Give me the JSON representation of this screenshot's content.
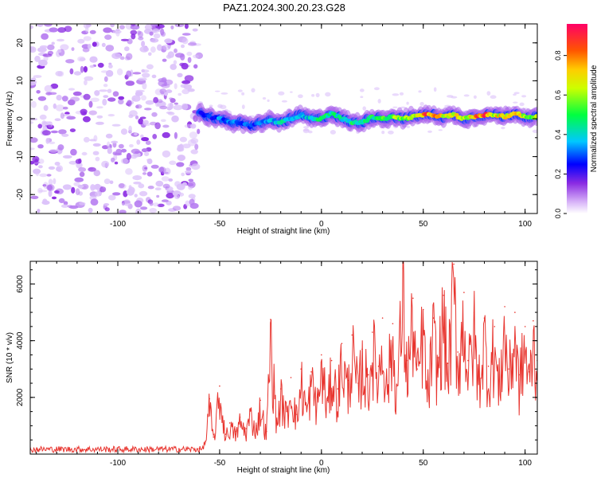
{
  "figure_title": "PAZ1.2024.300.20.23.G28",
  "colors": {
    "snr_line": "#e8352f",
    "noise": "#8a2be2",
    "frame": "#000000"
  },
  "chart_data": [
    {
      "type": "heatmap",
      "title": "",
      "xlabel": "Height of straight line (km)",
      "ylabel": "Frequency (Hz)",
      "xlim": [
        -143,
        106
      ],
      "ylim": [
        -25,
        25
      ],
      "xticks": [
        -100,
        -50,
        0,
        50,
        100
      ],
      "xtick_labels": [
        "-100",
        "-50",
        "0",
        "50",
        "100"
      ],
      "yticks": [
        -20,
        -10,
        0,
        10,
        20
      ],
      "ytick_labels": [
        "-20",
        "-10",
        "0",
        "10",
        "20"
      ],
      "noise_region_x": [
        -143,
        -60
      ],
      "signal_start_x": -60,
      "signal_track": {
        "x": [
          -60,
          -55,
          -50,
          -45,
          -40,
          -35,
          -30,
          -25,
          -20,
          -15,
          -10,
          -5,
          0,
          5,
          10,
          15,
          20,
          25,
          30,
          35,
          40,
          45,
          50,
          55,
          60,
          65,
          70,
          75,
          80,
          85,
          90,
          95,
          100,
          106
        ],
        "frequency_hz": [
          1.5,
          0.5,
          0,
          -1,
          -1,
          -2,
          -1,
          -0.5,
          -1,
          0,
          1,
          0,
          0,
          1.5,
          0,
          -1,
          -1,
          0.5,
          0,
          0.5,
          0,
          0.5,
          1,
          1,
          0.5,
          1,
          0,
          0.5,
          1,
          1,
          0.5,
          1.5,
          0.5,
          0.5
        ],
        "amplitude": [
          0.3,
          0.3,
          0.35,
          0.35,
          0.35,
          0.3,
          0.35,
          0.4,
          0.45,
          0.4,
          0.4,
          0.45,
          0.5,
          0.5,
          0.45,
          0.5,
          0.55,
          0.5,
          0.6,
          0.6,
          0.65,
          0.7,
          0.9,
          0.85,
          0.75,
          0.8,
          0.7,
          0.85,
          0.9,
          0.75,
          0.8,
          0.85,
          0.7,
          0.65
        ]
      },
      "colorbar": {
        "label": "Normalized spectral amplitude",
        "range": [
          0,
          0.96
        ],
        "ticks": [
          0.0,
          0.2,
          0.4,
          0.6,
          0.8
        ],
        "tick_labels": [
          "0.0",
          "0.2",
          "0.4",
          "0.6",
          "0.8"
        ]
      }
    },
    {
      "type": "line",
      "title": "",
      "xlabel": "Height of straight line (km)",
      "ylabel": "SNR (10 * v/v)",
      "xlim": [
        -143,
        106
      ],
      "ylim": [
        0,
        6800
      ],
      "xticks": [
        -100,
        -50,
        0,
        50,
        100
      ],
      "xtick_labels": [
        "-100",
        "-50",
        "0",
        "50",
        "100"
      ],
      "yticks": [
        2000,
        4000,
        6000
      ],
      "ytick_labels": [
        "2000",
        "4000",
        "6000"
      ],
      "series": [
        {
          "color": "#e8352f",
          "x": [
            -143,
            -130,
            -115,
            -100,
            -85,
            -70,
            -60,
            -57,
            -55,
            -53,
            -50,
            -47,
            -45,
            -42,
            -40,
            -37,
            -35,
            -32,
            -30,
            -27,
            -25,
            -22,
            -20,
            -17,
            -15,
            -12,
            -10,
            -7,
            -5,
            -2,
            0,
            3,
            5,
            8,
            10,
            13,
            15,
            18,
            20,
            23,
            25,
            28,
            30,
            32,
            35,
            37,
            40,
            42,
            45,
            47,
            50,
            52,
            55,
            57,
            60,
            62,
            65,
            67,
            70,
            72,
            75,
            77,
            80,
            82,
            85,
            87,
            90,
            92,
            95,
            97,
            100,
            102,
            104,
            106
          ],
          "values": [
            150,
            180,
            160,
            200,
            170,
            190,
            200,
            450,
            1950,
            600,
            2400,
            700,
            1100,
            800,
            1300,
            900,
            1600,
            1000,
            1900,
            800,
            4750,
            1200,
            2300,
            1500,
            2700,
            1400,
            3000,
            1700,
            2900,
            2000,
            3500,
            1900,
            3300,
            2300,
            3900,
            2600,
            4200,
            2500,
            3700,
            2800,
            4300,
            3100,
            4800,
            2700,
            4600,
            2400,
            6550,
            3300,
            5500,
            3000,
            5100,
            2300,
            4800,
            3400,
            5600,
            3200,
            6700,
            3600,
            5700,
            3300,
            5000,
            2900,
            4800,
            3100,
            4500,
            2600,
            5200,
            3000,
            5000,
            2800,
            4500,
            2900,
            4700,
            3300
          ]
        }
      ]
    }
  ]
}
